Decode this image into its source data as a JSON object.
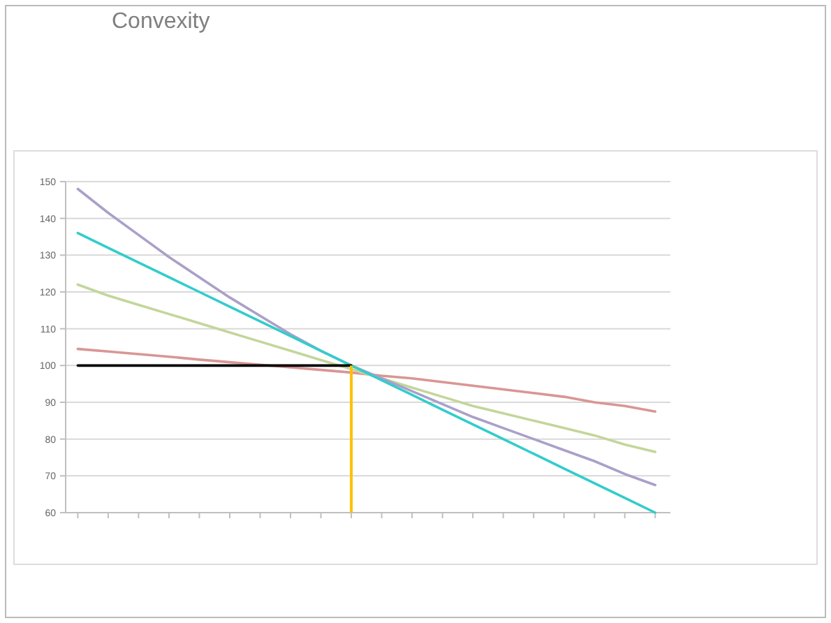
{
  "chart_data": {
    "type": "line",
    "title": "Convexity",
    "categories": [
      null,
      null,
      null,
      null,
      null,
      null,
      null,
      null,
      null,
      null,
      null,
      null,
      null,
      null,
      null,
      null,
      null,
      null,
      null,
      null
    ],
    "ylim": [
      60,
      150
    ],
    "yticks": [
      60,
      70,
      80,
      90,
      100,
      110,
      120,
      130,
      140,
      150
    ],
    "grid": "y",
    "series": [
      {
        "color": "#d99694",
        "values": [
          104.5,
          103.8,
          103.1,
          102.4,
          101.6,
          100.9,
          100.2,
          99.5,
          98.8,
          98.1,
          97.2,
          96.5,
          95.5,
          94.5,
          93.5,
          92.5,
          91.5,
          90,
          89,
          87.5
        ]
      },
      {
        "color": "#c3d69b",
        "values": [
          122,
          119,
          116.5,
          114,
          111.5,
          109,
          106.5,
          104,
          101.5,
          99,
          96.5,
          94,
          91.5,
          89,
          87,
          85,
          83,
          81,
          78.5,
          76.5
        ]
      },
      {
        "color": "#aaa0c8",
        "values": [
          148,
          141.5,
          135.5,
          129.5,
          124,
          118.5,
          113.5,
          108.5,
          104,
          100,
          96.5,
          93,
          89.5,
          86,
          83,
          80,
          77,
          74,
          70.5,
          67.5
        ]
      },
      {
        "color": "#33cccc",
        "values": [
          136,
          132,
          128,
          124,
          120,
          116,
          112,
          108,
          104,
          100,
          96,
          92,
          88,
          84,
          80,
          76,
          72,
          68,
          64,
          60
        ]
      },
      {
        "color": "#000000",
        "values": [
          100,
          100,
          100,
          100,
          100,
          100,
          100,
          100,
          100,
          100,
          null,
          null,
          null,
          null,
          null,
          null,
          null,
          null,
          null,
          null
        ]
      }
    ]
  }
}
